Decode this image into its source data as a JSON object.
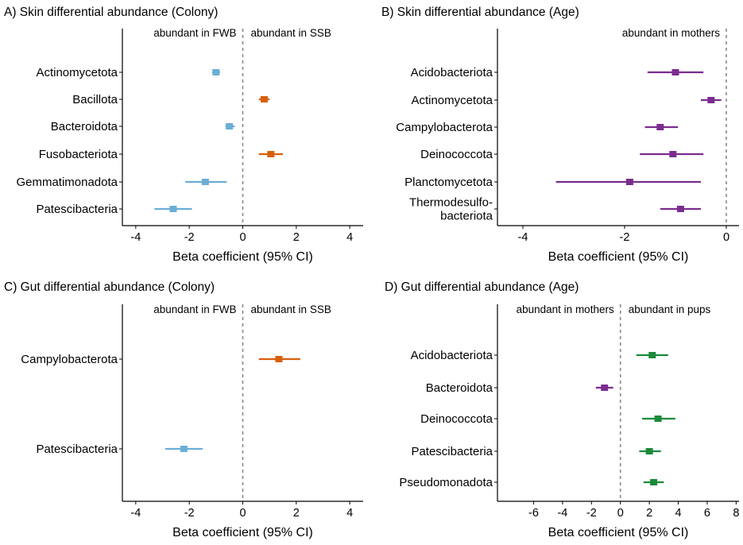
{
  "chart_data": [
    {
      "type": "forest",
      "title": "A) Skin differential abundance (Colony)",
      "xlabel": "Beta coefficient (95% CI)",
      "xlim": [
        -4.5,
        4.5
      ],
      "xticks": [
        -4,
        -2,
        0,
        2,
        4
      ],
      "xtick_labels": [
        "-4",
        "-2",
        "0",
        "2",
        "4"
      ],
      "reference_line": 0,
      "annotations": [
        {
          "text": "abundant in FWB",
          "side": "left"
        },
        {
          "text": "abundant in SSB",
          "side": "right"
        }
      ],
      "rows": [
        {
          "label": "Actinomycetota",
          "estimate": -1.0,
          "lower": -1.15,
          "upper": -0.85,
          "color": "#6baed6"
        },
        {
          "label": "Bacillota",
          "estimate": 0.8,
          "lower": 0.6,
          "upper": 1.0,
          "color": "#d95f0e"
        },
        {
          "label": "Bacteroidota",
          "estimate": -0.5,
          "lower": -0.65,
          "upper": -0.3,
          "color": "#6baed6"
        },
        {
          "label": "Fusobacteriota",
          "estimate": 1.05,
          "lower": 0.6,
          "upper": 1.5,
          "color": "#d95f0e"
        },
        {
          "label": "Gemmatimonadota",
          "estimate": -1.4,
          "lower": -2.15,
          "upper": -0.6,
          "color": "#6baed6"
        },
        {
          "label": "Patescibacteria",
          "estimate": -2.6,
          "lower": -3.3,
          "upper": -1.9,
          "color": "#6baed6"
        }
      ]
    },
    {
      "type": "forest",
      "title": "B) Skin differential abundance (Age)",
      "xlabel": "Beta coefficient (95% CI)",
      "xlim": [
        -4.5,
        0.25
      ],
      "xticks": [
        -4,
        -2,
        0
      ],
      "xtick_labels": [
        "-4",
        "-2",
        "0"
      ],
      "reference_line": 0,
      "annotations": [
        {
          "text": "abundant in mothers",
          "side": "left"
        }
      ],
      "rows": [
        {
          "label": "Acidobacteriota",
          "estimate": -1.0,
          "lower": -1.55,
          "upper": -0.45,
          "color": "#7b2c8f"
        },
        {
          "label": "Actinomycetota",
          "estimate": -0.3,
          "lower": -0.5,
          "upper": -0.1,
          "color": "#7b2c8f"
        },
        {
          "label": "Campylobacterota",
          "estimate": -1.3,
          "lower": -1.6,
          "upper": -0.95,
          "color": "#7b2c8f"
        },
        {
          "label": "Deinococcota",
          "estimate": -1.05,
          "lower": -1.7,
          "upper": -0.45,
          "color": "#7b2c8f"
        },
        {
          "label": "Planctomycetota",
          "estimate": -1.9,
          "lower": -3.35,
          "upper": -0.5,
          "color": "#7b2c8f"
        },
        {
          "label": "Thermodesulfo-\nbacteriota",
          "estimate": -0.9,
          "lower": -1.3,
          "upper": -0.5,
          "color": "#7b2c8f"
        }
      ]
    },
    {
      "type": "forest",
      "title": "C) Gut differential abundance (Colony)",
      "xlabel": "Beta coefficient (95% CI)",
      "xlim": [
        -4.5,
        4.5
      ],
      "xticks": [
        -4,
        -2,
        0,
        2,
        4
      ],
      "xtick_labels": [
        "-4",
        "-2",
        "0",
        "2",
        "4"
      ],
      "reference_line": 0,
      "annotations": [
        {
          "text": "abundant in FWB",
          "side": "left"
        },
        {
          "text": "abundant in SSB",
          "side": "right"
        }
      ],
      "rows": [
        {
          "label": "Campylobacterota",
          "estimate": 1.35,
          "lower": 0.6,
          "upper": 2.15,
          "color": "#d95f0e"
        },
        {
          "label": "Patescibacteria",
          "estimate": -2.2,
          "lower": -2.9,
          "upper": -1.5,
          "color": "#6baed6"
        }
      ]
    },
    {
      "type": "forest",
      "title": "D) Gut differential abundance (Age)",
      "xlabel": "Beta coefficient (95% CI)",
      "xlim": [
        -8.5,
        8.2
      ],
      "xticks": [
        -6,
        -4,
        -2,
        0,
        2,
        4,
        6,
        8
      ],
      "xtick_labels": [
        "-6",
        "-4",
        "-2",
        "0",
        "2",
        "4",
        "6",
        "8"
      ],
      "reference_line": 0,
      "annotations": [
        {
          "text": "abundant in mothers",
          "side": "left"
        },
        {
          "text": "abundant in pups",
          "side": "right"
        }
      ],
      "rows": [
        {
          "label": "Acidobacteriota",
          "estimate": 2.2,
          "lower": 1.1,
          "upper": 3.3,
          "color": "#1b8a3a"
        },
        {
          "label": "Bacteroidota",
          "estimate": -1.1,
          "lower": -1.7,
          "upper": -0.5,
          "color": "#7b2c8f"
        },
        {
          "label": "Deinococcota",
          "estimate": 2.6,
          "lower": 1.5,
          "upper": 3.8,
          "color": "#1b8a3a"
        },
        {
          "label": "Patescibacteria",
          "estimate": 2.0,
          "lower": 1.3,
          "upper": 2.8,
          "color": "#1b8a3a"
        },
        {
          "label": "Pseudomonadota",
          "estimate": 2.3,
          "lower": 1.6,
          "upper": 3.0,
          "color": "#1b8a3a"
        }
      ]
    }
  ]
}
